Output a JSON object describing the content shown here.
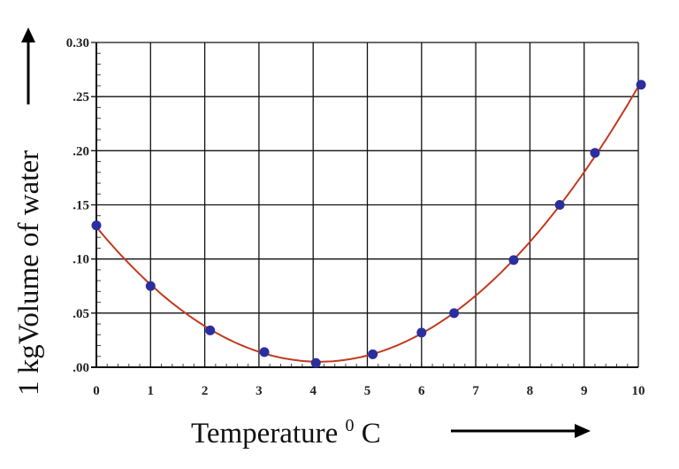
{
  "chart_data": {
    "type": "line",
    "title": "",
    "xlabel": "Temperature",
    "xlabel_unit_sup": "0",
    "xlabel_unit": "C",
    "ylabel": "1 kgVolume of water",
    "xlim": [
      0,
      10
    ],
    "ylim": [
      0.0,
      0.3
    ],
    "grid": true,
    "x_ticks": [
      "0",
      "1",
      "2",
      "3",
      "4",
      "5",
      "6",
      "7",
      "8",
      "9",
      "10"
    ],
    "y_ticks": [
      ".00",
      ".05",
      ".10",
      ".15",
      ".20",
      ".25",
      "0.30"
    ],
    "series": [
      {
        "x": [
          0,
          1,
          2.1,
          3.1,
          4.05,
          5.1,
          6,
          6.6,
          7.7,
          8.55,
          9.2,
          10.05
        ],
        "y": [
          0.131,
          0.075,
          0.034,
          0.014,
          0.004,
          0.012,
          0.032,
          0.05,
          0.099,
          0.15,
          0.198,
          0.261
        ],
        "marker_color": "#2b2e9e",
        "line_color": "#c23a1e"
      }
    ]
  }
}
